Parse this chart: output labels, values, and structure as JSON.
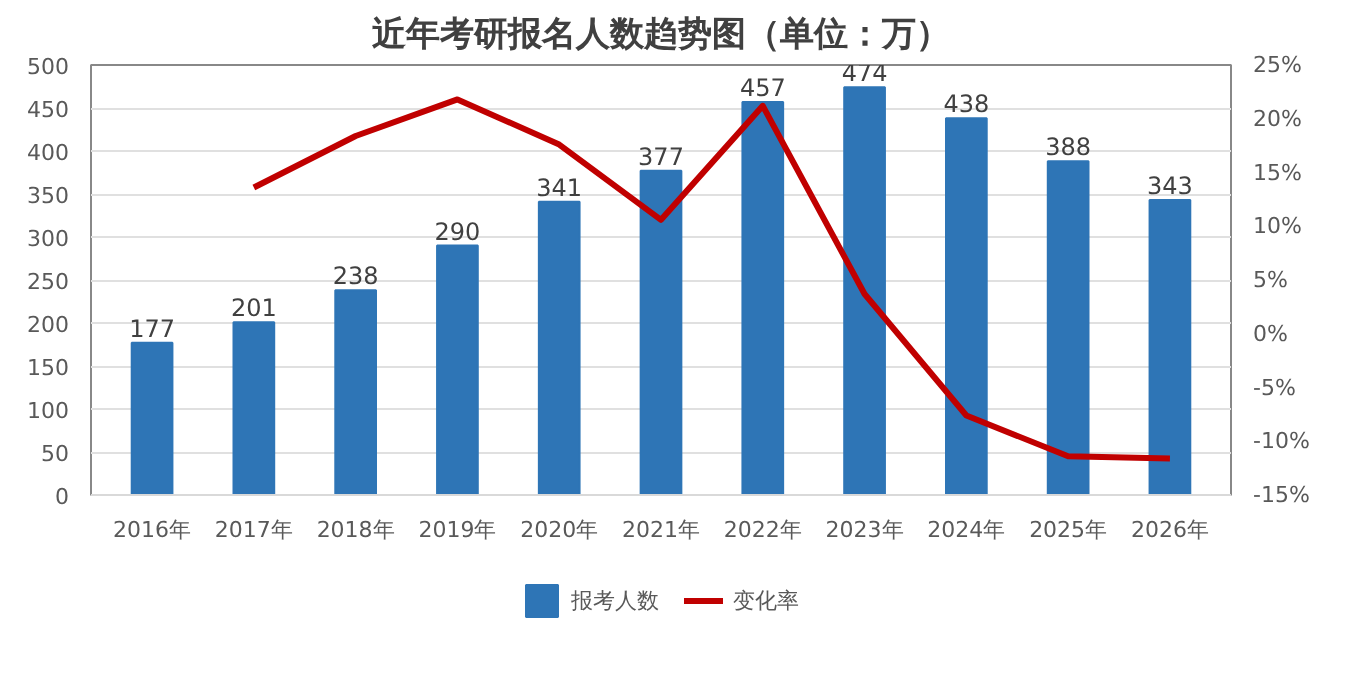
{
  "chart_data": {
    "type": "bar",
    "title": "近年考研报名人数趋势图（单位：万）",
    "categories": [
      "2016年",
      "2017年",
      "2018年",
      "2019年",
      "2020年",
      "2021年",
      "2022年",
      "2023年",
      "2024年",
      "2025年",
      "2026年"
    ],
    "series": [
      {
        "name": "报考人数",
        "color": "#2e75b6",
        "values": [
          177,
          201,
          238,
          290,
          341,
          377,
          457,
          474,
          438,
          388,
          343
        ],
        "value_labels": [
          "177",
          "201",
          "238",
          "290",
          "341",
          "377",
          "457",
          "474",
          "438",
          "388",
          "343"
        ]
      },
      {
        "name": "变化率",
        "type": "line",
        "axis": "y2",
        "color": "#c00000",
        "values": [
          null,
          13.6,
          18.4,
          21.8,
          17.6,
          10.6,
          21.2,
          3.7,
          -7.6,
          -11.4,
          -11.6
        ]
      }
    ],
    "ylim": [
      0,
      500
    ],
    "yticks": [
      0,
      50,
      100,
      150,
      200,
      250,
      300,
      350,
      400,
      450,
      500
    ],
    "y2lim": [
      -15,
      25
    ],
    "y2ticks": [
      {
        "value": -15,
        "label": "-15%"
      },
      {
        "value": -10,
        "label": "-10%"
      },
      {
        "value": -5,
        "label": "-5%"
      },
      {
        "value": 0,
        "label": "0%"
      },
      {
        "value": 5,
        "label": "5%"
      },
      {
        "value": 10,
        "label": "10%"
      },
      {
        "value": 15,
        "label": "15%"
      },
      {
        "value": 20,
        "label": "20%"
      },
      {
        "value": 25,
        "label": "25%"
      }
    ],
    "grid": "y",
    "legend": "bottom"
  }
}
